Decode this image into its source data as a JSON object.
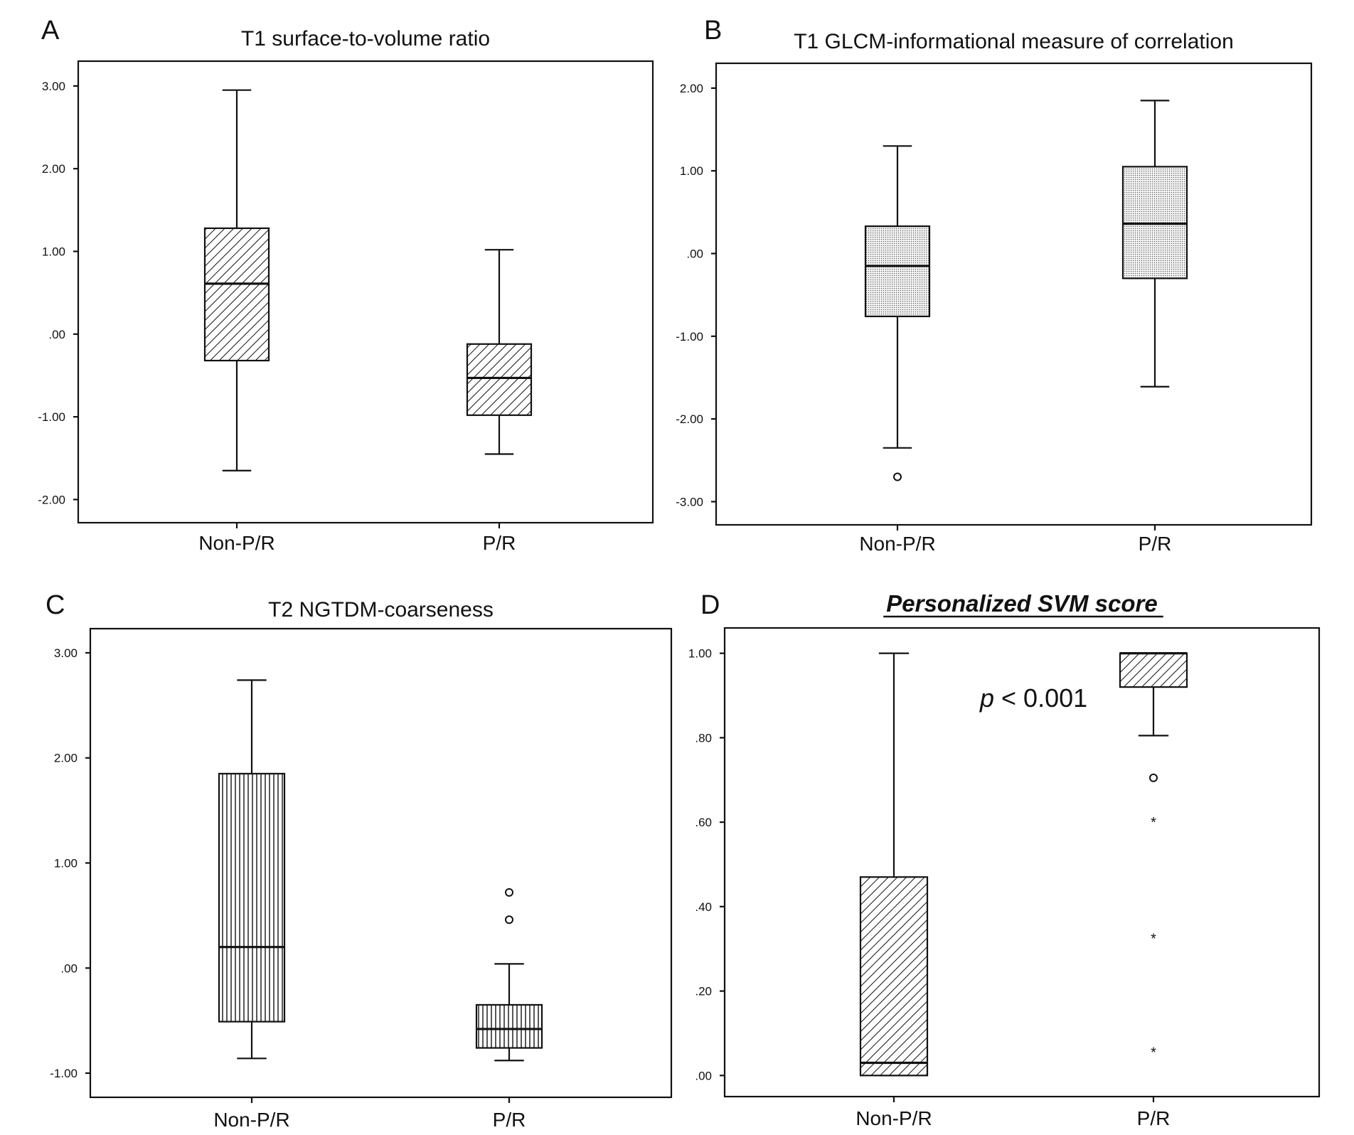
{
  "figure": {
    "background": "#ffffff",
    "ink": "#111111"
  },
  "chart_data": [
    {
      "panel": "A",
      "type": "box",
      "title": "T1 surface-to-volume ratio",
      "title_style": "plain",
      "xlabel": "",
      "ylabel": "",
      "categories": [
        "Non-P/R",
        "P/R"
      ],
      "ylim": [
        -2.28,
        3.3
      ],
      "yticks": [
        3.0,
        2.0,
        1.0,
        0.0,
        -1.0,
        -2.0
      ],
      "ytick_labels": [
        "3.00",
        "2.00",
        "1.00",
        ".00",
        "-1.00",
        "-2.00"
      ],
      "fill_pattern": "diagonal",
      "boxes": [
        {
          "category": "Non-P/R",
          "whisker_low": -1.65,
          "q1": -0.32,
          "median": 0.61,
          "q3": 1.28,
          "whisker_high": 2.95,
          "outliers": [],
          "extremes": []
        },
        {
          "category": "P/R",
          "whisker_low": -1.45,
          "q1": -0.98,
          "median": -0.53,
          "q3": -0.12,
          "whisker_high": 1.02,
          "outliers": [],
          "extremes": []
        }
      ],
      "annotations": []
    },
    {
      "panel": "B",
      "type": "box",
      "title": "T1 GLCM-informational measure of correlation",
      "title_style": "plain",
      "xlabel": "",
      "ylabel": "",
      "categories": [
        "Non-P/R",
        "P/R"
      ],
      "ylim": [
        -3.28,
        2.3
      ],
      "yticks": [
        2.0,
        1.0,
        0.0,
        -1.0,
        -2.0,
        -3.0
      ],
      "ytick_labels": [
        "2.00",
        "1.00",
        ".00",
        "-1.00",
        "-2.00",
        "-3.00"
      ],
      "fill_pattern": "dots",
      "boxes": [
        {
          "category": "Non-P/R",
          "whisker_low": -2.35,
          "q1": -0.76,
          "median": -0.15,
          "q3": 0.33,
          "whisker_high": 1.3,
          "outliers": [
            -2.7
          ],
          "extremes": []
        },
        {
          "category": "P/R",
          "whisker_low": -1.61,
          "q1": -0.3,
          "median": 0.36,
          "q3": 1.05,
          "whisker_high": 1.85,
          "outliers": [],
          "extremes": []
        }
      ],
      "annotations": []
    },
    {
      "panel": "C",
      "type": "box",
      "title": "T2 NGTDM-coarseness",
      "title_style": "plain",
      "xlabel": "",
      "ylabel": "",
      "categories": [
        "Non-P/R",
        "P/R"
      ],
      "ylim": [
        -1.23,
        3.23
      ],
      "yticks": [
        3.0,
        2.0,
        1.0,
        0.0,
        -1.0
      ],
      "ytick_labels": [
        "3.00",
        "2.00",
        "1.00",
        ".00",
        "-1.00"
      ],
      "fill_pattern": "vertical",
      "boxes": [
        {
          "category": "Non-P/R",
          "whisker_low": -0.86,
          "q1": -0.51,
          "median": 0.2,
          "q3": 1.85,
          "whisker_high": 2.74,
          "outliers": [],
          "extremes": []
        },
        {
          "category": "P/R",
          "whisker_low": -0.88,
          "q1": -0.76,
          "median": -0.58,
          "q3": -0.35,
          "whisker_high": 0.04,
          "outliers": [
            0.46,
            0.72
          ],
          "extremes": []
        }
      ],
      "annotations": []
    },
    {
      "panel": "D",
      "type": "box",
      "title": "Personalized SVM score",
      "title_style": "bold-italic-underline",
      "xlabel": "",
      "ylabel": "",
      "categories": [
        "Non-P/R",
        "P/R"
      ],
      "ylim": [
        -0.05,
        1.06
      ],
      "yticks": [
        1.0,
        0.8,
        0.6,
        0.4,
        0.2,
        0.0
      ],
      "ytick_labels": [
        "1.00",
        ".80",
        ".60",
        ".40",
        ".20",
        ".00"
      ],
      "fill_pattern": "diagonal",
      "boxes": [
        {
          "category": "Non-P/R",
          "whisker_low": 0.0,
          "q1": 0.0,
          "median": 0.03,
          "q3": 0.47,
          "whisker_high": 1.0,
          "outliers": [],
          "extremes": []
        },
        {
          "category": "P/R",
          "whisker_low": 0.805,
          "q1": 0.92,
          "median": 1.0,
          "q3": 1.0,
          "whisker_high": 1.0,
          "outliers": [
            0.705
          ],
          "extremes": [
            0.605,
            0.33,
            0.06
          ]
        }
      ],
      "annotations": [
        {
          "italic": "p",
          "text": " < 0.001"
        }
      ]
    }
  ]
}
